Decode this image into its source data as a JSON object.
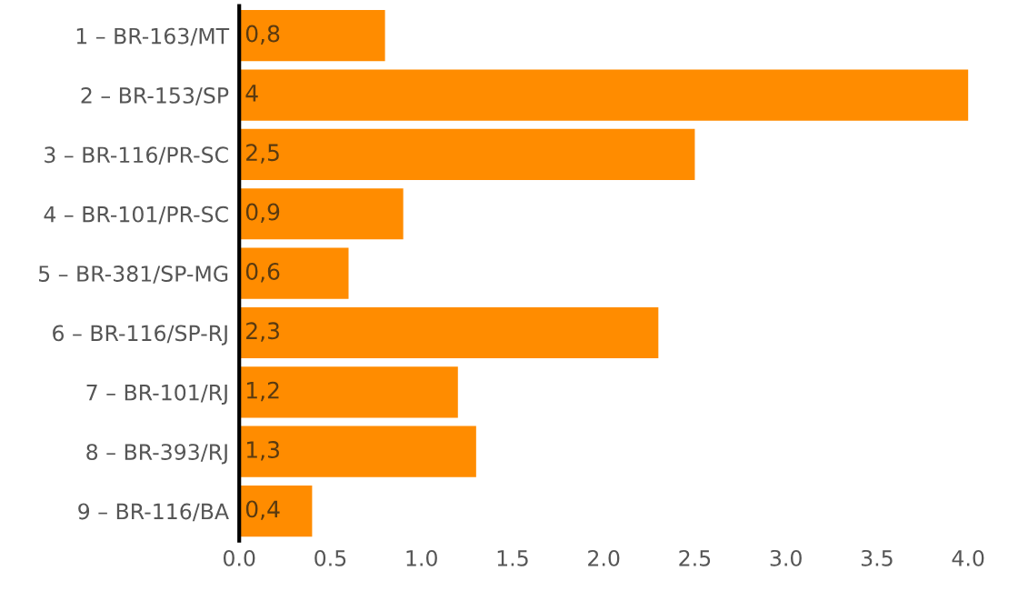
{
  "chart_data": {
    "type": "bar",
    "orientation": "horizontal",
    "categories": [
      "1 – BR-163/MT",
      "2 – BR-153/SP",
      "3 – BR-116/PR-SC",
      "4 – BR-101/PR-SC",
      "5 – BR-381/SP-MG",
      "6 – BR-116/SP-RJ",
      "7 – BR-101/RJ",
      "8 – BR-393/RJ",
      "9 – BR-116/BA"
    ],
    "values": [
      0.8,
      4,
      2.5,
      0.9,
      0.6,
      2.3,
      1.2,
      1.3,
      0.4
    ],
    "value_labels": [
      "0,8",
      "4",
      "2,5",
      "0,9",
      "0,6",
      "2,3",
      "1,2",
      "1,3",
      "0,4"
    ],
    "color": "#ff8c00",
    "xlim": [
      0,
      4.05
    ],
    "xticks": [
      {
        "value": 0,
        "label": "0.0"
      },
      {
        "value": 0.5,
        "label": "0.5"
      },
      {
        "value": 1,
        "label": "1.0"
      },
      {
        "value": 1.5,
        "label": "1.5"
      },
      {
        "value": 2,
        "label": "2.0"
      },
      {
        "value": 2.5,
        "label": "2.5"
      },
      {
        "value": 3,
        "label": "3.0"
      },
      {
        "value": 3.5,
        "label": "3.5"
      },
      {
        "value": 4,
        "label": "4.0"
      }
    ],
    "grid": false,
    "legend": false
  }
}
